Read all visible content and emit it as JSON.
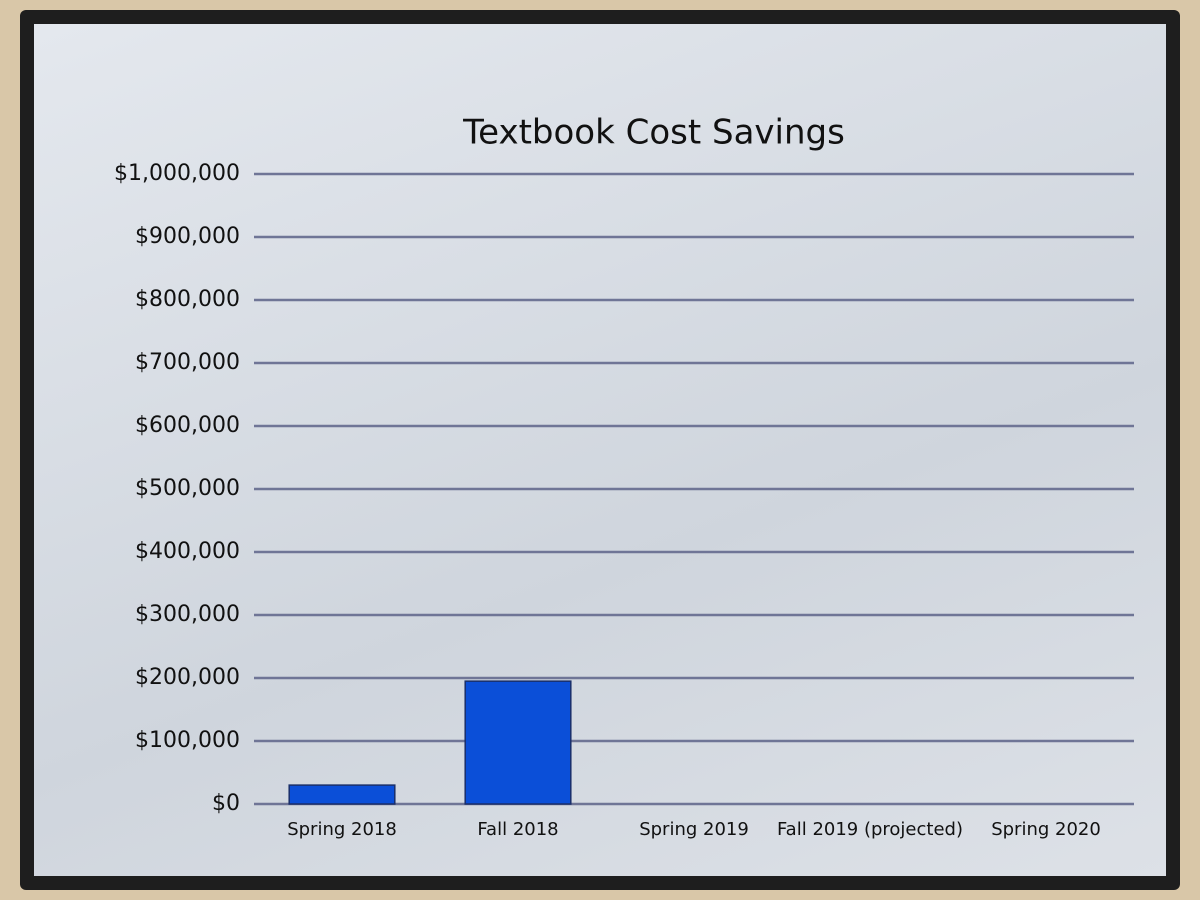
{
  "chart_data": {
    "type": "bar",
    "title": "Textbook Cost Savings",
    "categories": [
      "Spring 2018",
      "Fall 2018",
      "Spring 2019",
      "Fall 2019 (projected)",
      "Spring 2020"
    ],
    "values": [
      30000,
      195000,
      null,
      null,
      null
    ],
    "color": "#0b4fd8",
    "ylim": [
      0,
      1000000
    ],
    "yticks": [
      {
        "value": 0,
        "label": "$0"
      },
      {
        "value": 100000,
        "label": "$100,000"
      },
      {
        "value": 200000,
        "label": "$200,000"
      },
      {
        "value": 300000,
        "label": "$300,000"
      },
      {
        "value": 400000,
        "label": "$400,000"
      },
      {
        "value": 500000,
        "label": "$500,000"
      },
      {
        "value": 600000,
        "label": "$600,000"
      },
      {
        "value": 700000,
        "label": "$700,000"
      },
      {
        "value": 800000,
        "label": "$800,000"
      },
      {
        "value": 900000,
        "label": "$900,000"
      },
      {
        "value": 1000000,
        "label": "$1,000,000"
      }
    ],
    "grid": true
  }
}
